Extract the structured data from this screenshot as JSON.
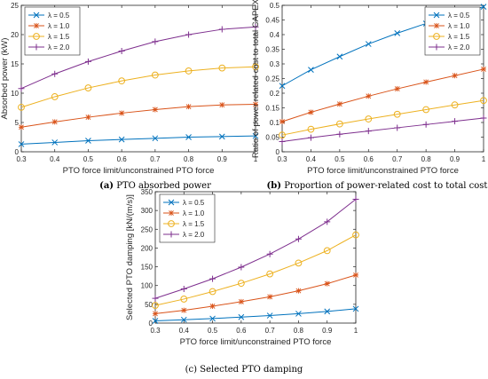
{
  "captions": [
    {
      "tag": "(a)",
      "text": "PTO absorbed power"
    },
    {
      "tag": "(b)",
      "text": "Proportion of power-related cost to total cost"
    },
    {
      "tag": "(c)",
      "text": "Selected PTO damping"
    }
  ],
  "colors": {
    "series_0_5": "#0072BD",
    "series_1_0": "#D95319",
    "series_1_5": "#EDB120",
    "series_2_0": "#7E2F8E",
    "axis": "#262626"
  },
  "chart_data": [
    {
      "type": "line",
      "xlabel": "PTO force limit/unconstrained PTO force",
      "ylabel": "Absorbed power (kW)",
      "xlim": [
        0.3,
        1
      ],
      "ylim": [
        0,
        25
      ],
      "xticks": [
        "0.3",
        "0.4",
        "0.5",
        "0.6",
        "0.7",
        "0.8",
        "0.9",
        "1"
      ],
      "yticks": [
        "0",
        "5",
        "10",
        "15",
        "20",
        "25"
      ],
      "grid": false,
      "legend": "top-left",
      "x": [
        0.3,
        0.4,
        0.5,
        0.6,
        0.7,
        0.8,
        0.9,
        1.0
      ],
      "series": [
        {
          "name": "λ = 0.5",
          "marker": "x",
          "values": [
            1.3,
            1.6,
            1.9,
            2.1,
            2.3,
            2.5,
            2.6,
            2.7
          ]
        },
        {
          "name": "λ = 1.0",
          "marker": "*",
          "values": [
            4.2,
            5.1,
            5.9,
            6.6,
            7.2,
            7.7,
            8.0,
            8.1
          ]
        },
        {
          "name": "λ = 1.5",
          "marker": "o",
          "values": [
            7.6,
            9.4,
            10.9,
            12.1,
            13.1,
            13.8,
            14.3,
            14.5
          ]
        },
        {
          "name": "λ = 2.0",
          "marker": "+",
          "values": [
            10.8,
            13.3,
            15.4,
            17.2,
            18.8,
            20.0,
            20.9,
            21.3
          ]
        }
      ]
    },
    {
      "type": "line",
      "xlabel": "PTO force limit/unconstrained PTO force",
      "ylabel": "Ratio of power related cost to total CAPEX",
      "xlim": [
        0.3,
        1
      ],
      "ylim": [
        0,
        0.5
      ],
      "xticks": [
        "0.3",
        "0.4",
        "0.5",
        "0.6",
        "0.7",
        "0.8",
        "0.9",
        "1"
      ],
      "yticks": [
        "0",
        "0.05",
        "0.1",
        "0.15",
        "0.2",
        "0.25",
        "0.3",
        "0.35",
        "0.4",
        "0.45",
        "0.5"
      ],
      "grid": false,
      "legend": "top-right",
      "x": [
        0.3,
        0.4,
        0.5,
        0.6,
        0.7,
        0.8,
        0.9,
        1.0
      ],
      "series": [
        {
          "name": "λ = 0.5",
          "marker": "x",
          "values": [
            0.225,
            0.28,
            0.325,
            0.368,
            0.405,
            0.438,
            0.468,
            0.495
          ]
        },
        {
          "name": "λ = 1.0",
          "marker": "*",
          "values": [
            0.103,
            0.135,
            0.163,
            0.19,
            0.215,
            0.238,
            0.26,
            0.282
          ]
        },
        {
          "name": "λ = 1.5",
          "marker": "o",
          "values": [
            0.057,
            0.077,
            0.095,
            0.112,
            0.128,
            0.144,
            0.16,
            0.175
          ]
        },
        {
          "name": "λ = 2.0",
          "marker": "+",
          "values": [
            0.035,
            0.048,
            0.06,
            0.071,
            0.082,
            0.093,
            0.104,
            0.115
          ]
        }
      ]
    },
    {
      "type": "line",
      "xlabel": "PTO force limit/unconstrained PTO force",
      "ylabel": "Selected PTO damping [kN/(m/s)]",
      "xlim": [
        0.3,
        1
      ],
      "ylim": [
        0,
        350
      ],
      "xticks": [
        "0.3",
        "0.4",
        "0.5",
        "0.6",
        "0.7",
        "0.8",
        "0.9",
        "1"
      ],
      "yticks": [
        "0",
        "50",
        "100",
        "150",
        "200",
        "250",
        "300",
        "350"
      ],
      "grid": false,
      "legend": "top-left",
      "x": [
        0.3,
        0.4,
        0.5,
        0.6,
        0.7,
        0.8,
        0.9,
        1.0
      ],
      "series": [
        {
          "name": "λ = 0.5",
          "marker": "x",
          "values": [
            6,
            9,
            12,
            16,
            20,
            25,
            31,
            38
          ]
        },
        {
          "name": "λ = 1.0",
          "marker": "*",
          "values": [
            25,
            34,
            45,
            57,
            70,
            86,
            105,
            128
          ]
        },
        {
          "name": "λ = 1.5",
          "marker": "o",
          "values": [
            47,
            64,
            84,
            106,
            131,
            160,
            193,
            235
          ]
        },
        {
          "name": "λ = 2.0",
          "marker": "+",
          "values": [
            66,
            91,
            118,
            149,
            184,
            224,
            270,
            330
          ]
        }
      ]
    }
  ]
}
